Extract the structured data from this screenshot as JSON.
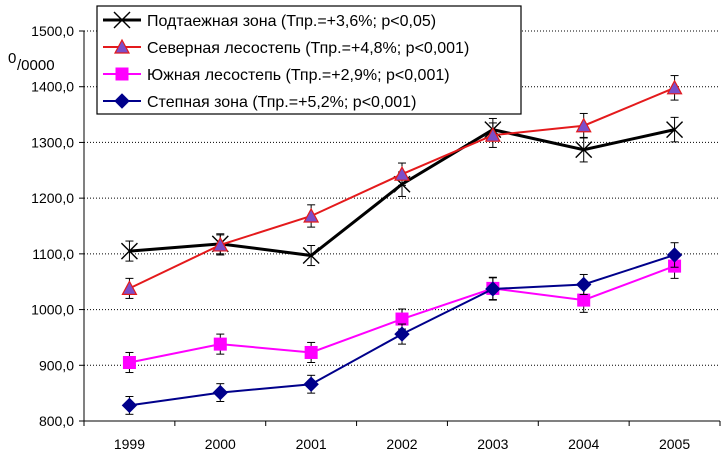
{
  "chart_data": {
    "type": "line",
    "categories": [
      "1999",
      "2000",
      "2001",
      "2002",
      "2003",
      "2004",
      "2005"
    ],
    "ylim": [
      800,
      1500
    ],
    "yticks": [
      "800,0",
      "900,0",
      "1000,0",
      "1100,0",
      "1200,0",
      "1300,0",
      "1400,0",
      "1500,0"
    ],
    "ylabel_sup": "0",
    "ylabel_sub": "/0000",
    "grid": "horizontal-dotted",
    "legend_position": "top-left",
    "series": [
      {
        "name": "Подтаежная зона (Тпр.=+3,6%; p<0,05)",
        "color": "#000000",
        "marker": "x",
        "values": [
          1105,
          1118,
          1097,
          1225,
          1323,
          1287,
          1323
        ],
        "errors": [
          18,
          18,
          18,
          22,
          20,
          22,
          22
        ]
      },
      {
        "name": "Северная лесостепь (Тпр.=+4,8%; p<0,001)",
        "color": "#E41A1C",
        "marker": "triangle",
        "marker_fill": "#7B4FC9",
        "values": [
          1038,
          1116,
          1168,
          1243,
          1313,
          1330,
          1398
        ],
        "errors": [
          18,
          18,
          20,
          20,
          22,
          22,
          22
        ]
      },
      {
        "name": "Южная лесостепь (Тпр.=+2,9%; p<0,001)",
        "color": "#FF00FF",
        "marker": "square",
        "values": [
          905,
          938,
          923,
          983,
          1038,
          1017,
          1078
        ],
        "errors": [
          18,
          18,
          18,
          18,
          20,
          22,
          22
        ]
      },
      {
        "name": "Степная зона (Тпр.=+5,2%; p<0,001)",
        "color": "#00008B",
        "marker": "diamond",
        "values": [
          828,
          851,
          866,
          956,
          1037,
          1045,
          1098
        ],
        "errors": [
          16,
          16,
          16,
          18,
          20,
          18,
          22
        ]
      }
    ]
  }
}
